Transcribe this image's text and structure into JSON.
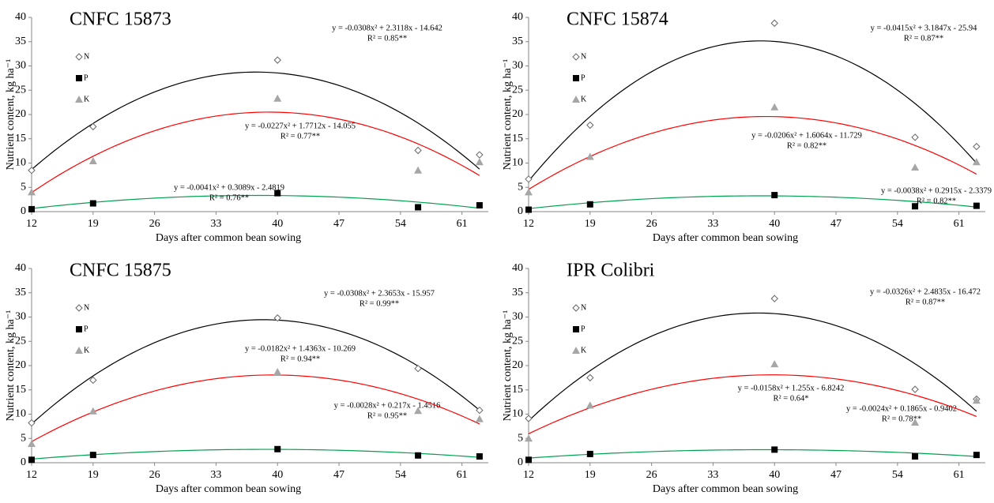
{
  "chart_data": [
    {
      "type": "scatter",
      "title": "CNFC 15873",
      "x_label": "Days after common bean sowing",
      "y_label": "Nutrient content, kg ha⁻¹",
      "x": [
        12,
        19,
        40,
        56,
        63
      ],
      "xlim": [
        12,
        64
      ],
      "xticks": [
        12,
        19,
        26,
        33,
        40,
        47,
        54,
        61
      ],
      "ylim": [
        0,
        40
      ],
      "yticks": [
        0,
        5,
        10,
        15,
        20,
        25,
        30,
        35,
        40
      ],
      "legend": "upper left",
      "series": [
        {
          "name": "N",
          "marker": "diamond",
          "color": "#666666",
          "values": [
            8.5,
            17.5,
            31.2,
            12.6,
            11.7
          ],
          "trend": {
            "color": "#000000",
            "equation": "y = -0.0308x² + 2.3118x - 14.642",
            "r2": "R² = 0.85**"
          }
        },
        {
          "name": "P",
          "marker": "square",
          "color": "#000000",
          "values": [
            0.5,
            1.7,
            3.8,
            0.9,
            1.3
          ],
          "trend": {
            "color": "#00a050",
            "equation": "y = -0.0041x² + 0.3089x - 2.4819",
            "r2": "R² = 0.76**"
          }
        },
        {
          "name": "K",
          "marker": "triangle",
          "color": "#a6a6a6",
          "values": [
            4.0,
            10.4,
            23.3,
            8.5,
            10.2
          ],
          "trend": {
            "color": "#ff0000",
            "equation": "y = -0.0227x² + 1.7712x - 14.055",
            "r2": "R² = 0.77**"
          }
        }
      ]
    },
    {
      "type": "scatter",
      "title": "CNFC 15874",
      "x_label": "Days after common bean sowing",
      "y_label": "Nutrient content, kg ha⁻¹",
      "x": [
        12,
        19,
        40,
        56,
        63
      ],
      "xlim": [
        12,
        64
      ],
      "xticks": [
        12,
        19,
        26,
        33,
        40,
        47,
        54,
        61
      ],
      "ylim": [
        0,
        40
      ],
      "yticks": [
        0,
        5,
        10,
        15,
        20,
        25,
        30,
        35,
        40
      ],
      "legend": "upper left",
      "series": [
        {
          "name": "N",
          "marker": "diamond",
          "color": "#666666",
          "values": [
            6.7,
            17.8,
            38.8,
            15.3,
            13.4
          ],
          "trend": {
            "color": "#000000",
            "equation": "y = -0.0415x² + 3.1847x - 25.94",
            "r2": "R² = 0.87**"
          }
        },
        {
          "name": "P",
          "marker": "square",
          "color": "#000000",
          "values": [
            0.4,
            1.5,
            3.4,
            1.1,
            1.2
          ],
          "trend": {
            "color": "#00a050",
            "equation": "y = -0.0038x² + 0.2915x - 2.3379",
            "r2": "R² = 0.82**"
          }
        },
        {
          "name": "K",
          "marker": "triangle",
          "color": "#a6a6a6",
          "values": [
            4.0,
            11.3,
            21.5,
            9.1,
            10.2
          ],
          "trend": {
            "color": "#ff0000",
            "equation": "y = -0.0206x² + 1.6064x - 11.729",
            "r2": "R² = 0.82**"
          }
        }
      ]
    },
    {
      "type": "scatter",
      "title": "CNFC 15875",
      "x_label": "Days after common bean sowing",
      "y_label": "Nutrient content, kg ha⁻¹",
      "x": [
        12,
        19,
        40,
        56,
        63
      ],
      "xlim": [
        12,
        64
      ],
      "xticks": [
        12,
        19,
        26,
        33,
        40,
        47,
        54,
        61
      ],
      "ylim": [
        0,
        40
      ],
      "yticks": [
        0,
        5,
        10,
        15,
        20,
        25,
        30,
        35,
        40
      ],
      "legend": "upper left",
      "series": [
        {
          "name": "N",
          "marker": "diamond",
          "color": "#666666",
          "values": [
            8.2,
            17.0,
            29.8,
            19.4,
            10.8
          ],
          "trend": {
            "color": "#000000",
            "equation": "y = -0.0308x² + 2.3653x - 15.957",
            "r2": "R² = 0.99**"
          }
        },
        {
          "name": "P",
          "marker": "square",
          "color": "#000000",
          "values": [
            0.6,
            1.6,
            2.8,
            1.5,
            1.3
          ],
          "trend": {
            "color": "#00a050",
            "equation": "y = -0.0028x² + 0.217x - 1.4516",
            "r2": "R² = 0.95**"
          }
        },
        {
          "name": "K",
          "marker": "triangle",
          "color": "#a6a6a6",
          "values": [
            3.9,
            10.6,
            18.7,
            10.7,
            9.0
          ],
          "trend": {
            "color": "#ff0000",
            "equation": "y = -0.0182x² + 1.4363x - 10.269",
            "r2": "R² = 0.94**"
          }
        }
      ]
    },
    {
      "type": "scatter",
      "title": "IPR Colibri",
      "x_label": "Days after common bean sowing",
      "y_label": "Nutrient content, kg ha⁻¹",
      "x": [
        12,
        19,
        40,
        56,
        63
      ],
      "xlim": [
        12,
        64
      ],
      "xticks": [
        12,
        19,
        26,
        33,
        40,
        47,
        54,
        61
      ],
      "ylim": [
        0,
        40
      ],
      "yticks": [
        0,
        5,
        10,
        15,
        20,
        25,
        30,
        35,
        40
      ],
      "legend": "upper left",
      "series": [
        {
          "name": "N",
          "marker": "diamond",
          "color": "#666666",
          "values": [
            9.1,
            17.5,
            33.8,
            15.1,
            13.1
          ],
          "trend": {
            "color": "#000000",
            "equation": "y = -0.0326x² + 2.4835x - 16.472",
            "r2": "R² = 0.87**"
          }
        },
        {
          "name": "P",
          "marker": "square",
          "color": "#000000",
          "values": [
            0.6,
            1.8,
            2.7,
            1.3,
            1.6
          ],
          "trend": {
            "color": "#00a050",
            "equation": "y = -0.0024x² + 0.1865x - 0.9402",
            "r2": "R² = 0.78**"
          }
        },
        {
          "name": "K",
          "marker": "triangle",
          "color": "#a6a6a6",
          "values": [
            5.0,
            11.8,
            20.3,
            8.3,
            12.8
          ],
          "trend": {
            "color": "#ff0000",
            "equation": "y = -0.0158x² + 1.255x - 6.8242",
            "r2": "R² = 0.64*"
          }
        }
      ]
    }
  ]
}
